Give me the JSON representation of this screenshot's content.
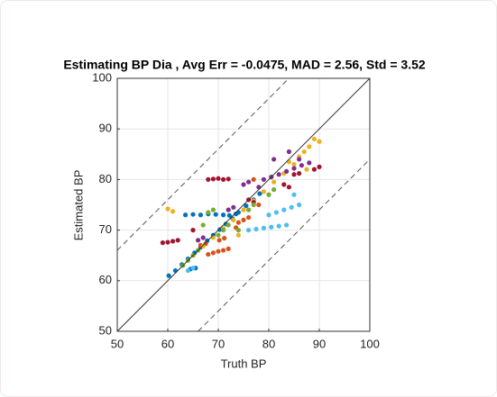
{
  "chart_data": {
    "type": "scatter",
    "title": "Estimating BP Dia , Avg Err = -0.0475, MAD = 2.56, Std = 3.52",
    "x_label": "Truth BP",
    "y_label": "Estimated BP",
    "xlim": [
      50,
      100
    ],
    "ylim": [
      50,
      100
    ],
    "xticks": [
      50,
      60,
      70,
      80,
      90,
      100
    ],
    "yticks": [
      50,
      60,
      70,
      80,
      90,
      100
    ],
    "grid": true,
    "reference_lines": [
      {
        "slope": 1,
        "intercept": 0,
        "style": "solid"
      },
      {
        "slope": 1,
        "intercept": 16,
        "style": "dashed"
      },
      {
        "slope": 1,
        "intercept": -16,
        "style": "dashed"
      }
    ],
    "series": [
      {
        "color": "#0072BD",
        "x": [
          60.2,
          61.5,
          62.8,
          64.0,
          65.3,
          66.5,
          67.8,
          69.0,
          70.3,
          71.5,
          72.8,
          74.0,
          75.5,
          77.0,
          78.2,
          63.5,
          65.0,
          66.5,
          68.0,
          69.5,
          71.0,
          72.2,
          73.5,
          64.5,
          65.5
        ],
        "y": [
          61.0,
          62.0,
          63.2,
          64.3,
          65.5,
          66.6,
          67.9,
          69.0,
          70.1,
          71.2,
          72.3,
          73.5,
          74.8,
          76.0,
          77.2,
          73.0,
          73.1,
          73.0,
          73.2,
          73.1,
          73.0,
          72.9,
          73.2,
          62.3,
          62.5
        ]
      },
      {
        "color": "#D95319",
        "x": [
          68.0,
          69.0,
          70.0,
          71.0,
          72.0,
          70.2,
          71.2,
          73.5,
          75.0,
          76.0,
          66.5,
          67.5,
          74.0,
          78.0,
          77.0
        ],
        "y": [
          65.2,
          65.5,
          65.8,
          66.0,
          66.3,
          68.0,
          68.4,
          70.5,
          72.0,
          72.5,
          67.0,
          67.3,
          71.5,
          75.0,
          80.0
        ]
      },
      {
        "color": "#EDB120",
        "x": [
          60.0,
          61.0,
          65.0,
          67.0,
          69.0,
          71.0,
          73.0,
          75.0,
          77.0,
          79.0,
          81.0,
          83.0,
          85.0,
          87.0,
          89.0,
          86.0,
          88.0,
          90.0,
          84.0,
          87.5,
          74.0
        ],
        "y": [
          74.2,
          73.7,
          65.0,
          66.8,
          68.5,
          70.3,
          72.0,
          74.0,
          75.8,
          77.6,
          79.5,
          81.2,
          83.0,
          85.5,
          88.0,
          84.5,
          86.5,
          87.5,
          83.5,
          82.0,
          69.0
        ]
      },
      {
        "color": "#7E2F8E",
        "x": [
          79.0,
          80.5,
          82.0,
          83.5,
          85.0,
          86.5,
          88.0,
          66.0,
          67.0,
          75.0,
          76.0,
          86.0,
          84.0,
          81.0,
          72.0,
          73.0,
          78.0
        ],
        "y": [
          80.0,
          80.5,
          81.0,
          81.6,
          82.2,
          82.8,
          83.3,
          68.0,
          68.5,
          79.0,
          79.5,
          84.0,
          85.5,
          84.0,
          74.0,
          74.5,
          78.5
        ]
      },
      {
        "color": "#A2142F",
        "x": [
          59.0,
          60.0,
          61.0,
          62.0,
          68.0,
          69.0,
          70.0,
          71.0,
          72.0,
          85.0,
          86.0,
          89.0,
          90.0,
          83.0,
          84.0,
          76.0,
          77.0,
          65.0
        ],
        "y": [
          67.5,
          67.6,
          67.8,
          68.0,
          80.0,
          80.1,
          80.2,
          80.0,
          80.1,
          81.0,
          81.2,
          82.0,
          82.5,
          79.0,
          78.5,
          76.0,
          75.5,
          70.0
        ]
      },
      {
        "color": "#77AC30",
        "x": [
          63.0,
          64.0,
          65.0,
          66.0,
          70.0,
          71.0,
          72.0,
          68.0,
          69.0,
          76.0,
          77.0,
          80.0,
          81.0,
          67.0,
          74.0
        ],
        "y": [
          63.0,
          64.0,
          65.0,
          66.0,
          69.0,
          70.0,
          71.0,
          73.5,
          74.0,
          74.0,
          75.0,
          77.0,
          78.0,
          71.0,
          70.0
        ]
      },
      {
        "color": "#4DBEEE",
        "x": [
          76.0,
          77.5,
          79.0,
          80.5,
          82.0,
          83.5,
          80.0,
          81.5,
          83.0,
          84.5,
          86.0,
          85.0,
          64.0,
          65.0
        ],
        "y": [
          70.0,
          70.2,
          70.4,
          70.6,
          70.8,
          71.0,
          73.0,
          73.5,
          74.0,
          74.5,
          75.0,
          77.0,
          62.0,
          62.5
        ]
      }
    ]
  }
}
